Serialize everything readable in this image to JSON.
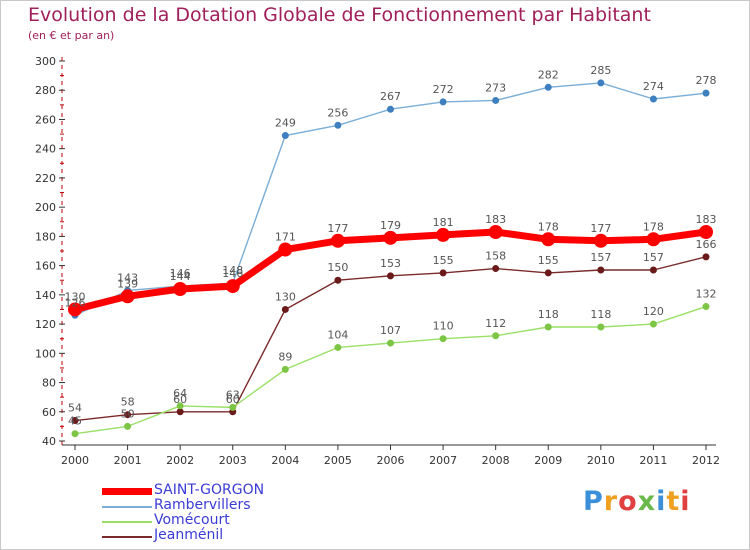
{
  "header": {
    "title": "Evolution de la Dotation Globale de Fonctionnement par Habitant",
    "subtitle": "(en € et par an)"
  },
  "chart_data": {
    "type": "line",
    "title": "Evolution de la Dotation Globale de Fonctionnement par Habitant",
    "subtitle": "(en € et par an)",
    "xlabel": "",
    "ylabel": "",
    "ylim": [
      40,
      300
    ],
    "yticks": [
      40,
      60,
      80,
      100,
      120,
      140,
      160,
      180,
      200,
      220,
      240,
      260,
      280,
      300
    ],
    "grid": false,
    "legend_position": "bottom-left",
    "categories": [
      "2000",
      "2001",
      "2002",
      "2003",
      "2004",
      "2005",
      "2006",
      "2007",
      "2008",
      "2009",
      "2010",
      "2011",
      "2012"
    ],
    "series": [
      {
        "name": "SAINT-GORGON",
        "color": "#ff0000",
        "marker": "#ff0000",
        "label_color": "#555555",
        "values": [
          130,
          139,
          144,
          146,
          171,
          177,
          179,
          181,
          183,
          178,
          177,
          178,
          183
        ]
      },
      {
        "name": "Rambervillers",
        "color": "#7aaed6",
        "marker": "#3d7fbf",
        "label_color": "#555555",
        "values": [
          126,
          143,
          146,
          148,
          249,
          256,
          267,
          272,
          273,
          282,
          285,
          274,
          278
        ]
      },
      {
        "name": "Vomécourt",
        "color": "#99e066",
        "marker": "#7cc545",
        "label_color": "#555555",
        "values": [
          45,
          50,
          64,
          63,
          89,
          104,
          107,
          110,
          112,
          118,
          118,
          120,
          132
        ]
      },
      {
        "name": "Jeanménil",
        "color": "#7a2a2a",
        "marker": "#6b1a1a",
        "label_color": "#555555",
        "values": [
          54,
          58,
          60,
          60,
          130,
          150,
          153,
          155,
          158,
          155,
          157,
          157,
          166
        ]
      }
    ]
  },
  "legend": {
    "items": [
      {
        "label": "SAINT-GORGON",
        "color": "#ff0000"
      },
      {
        "label": "Rambervillers",
        "color": "#7aaed6"
      },
      {
        "label": "Vomécourt",
        "color": "#99e066"
      },
      {
        "label": "Jeanménil",
        "color": "#7a2a2a"
      }
    ]
  },
  "logo": {
    "letters": [
      "P",
      "r",
      "o",
      "x",
      "i",
      "t",
      "i"
    ],
    "colors": [
      "#3a8fd8",
      "#f0a020",
      "#e04040",
      "#6ab84a",
      "#3a8fd8",
      "#f0a020",
      "#e04040"
    ]
  }
}
